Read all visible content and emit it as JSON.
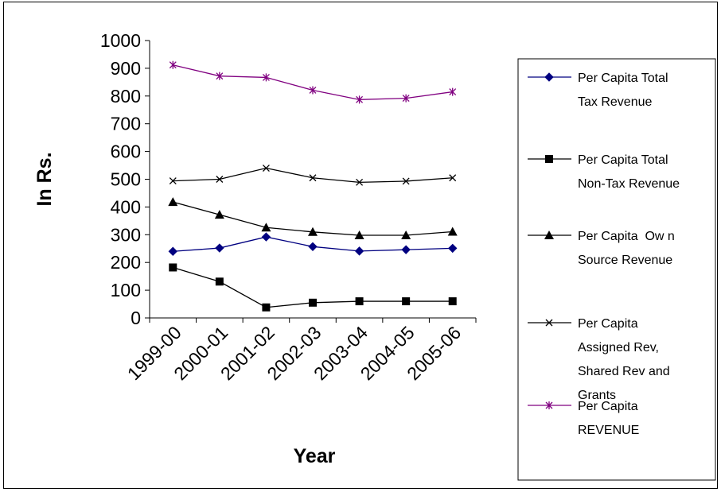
{
  "chart_data": {
    "type": "line",
    "categories": [
      "1999-00",
      "2000-01",
      "2001-02",
      "2002-03",
      "2003-04",
      "2004-05",
      "2005-06"
    ],
    "xlabel": "Year",
    "ylabel": "In Rs.",
    "ylim": [
      0,
      1000
    ],
    "yticks": [
      "0",
      "100",
      "200",
      "300",
      "400",
      "500",
      "600",
      "700",
      "800",
      "900",
      "1000"
    ],
    "grid": false,
    "legend_position": "right",
    "series": [
      {
        "name": "Per Capita Total Tax Revenue",
        "legend_lines": [
          "Per Capita Total",
          "Tax Revenue"
        ],
        "marker": "diamond",
        "color": "#000080",
        "values": [
          240,
          252,
          292,
          257,
          241,
          246,
          251
        ]
      },
      {
        "name": "Per Capita Total Non-Tax Revenue",
        "legend_lines": [
          "Per Capita Total",
          "Non-Tax Revenue"
        ],
        "marker": "square",
        "color": "#000000",
        "values": [
          182,
          131,
          38,
          55,
          60,
          60,
          60
        ]
      },
      {
        "name": "Per Capita Own Source Revenue",
        "legend_lines": [
          "Per Capita  Ow n",
          "Source Revenue"
        ],
        "marker": "triangle",
        "color": "#000000",
        "values": [
          418,
          372,
          326,
          310,
          298,
          298,
          311
        ]
      },
      {
        "name": "Per Capita Assigned Rev, Shared Rev and Grants",
        "legend_lines": [
          "Per Capita",
          "Assigned Rev,",
          "Shared Rev and",
          "Grants"
        ],
        "marker": "x",
        "color": "#000000",
        "values": [
          494,
          500,
          540,
          505,
          489,
          493,
          505
        ]
      },
      {
        "name": "Per Capita REVENUE",
        "legend_lines": [
          "Per Capita",
          "REVENUE"
        ],
        "marker": "star",
        "color": "#800080",
        "values": [
          912,
          872,
          867,
          821,
          787,
          792,
          815
        ]
      }
    ]
  }
}
